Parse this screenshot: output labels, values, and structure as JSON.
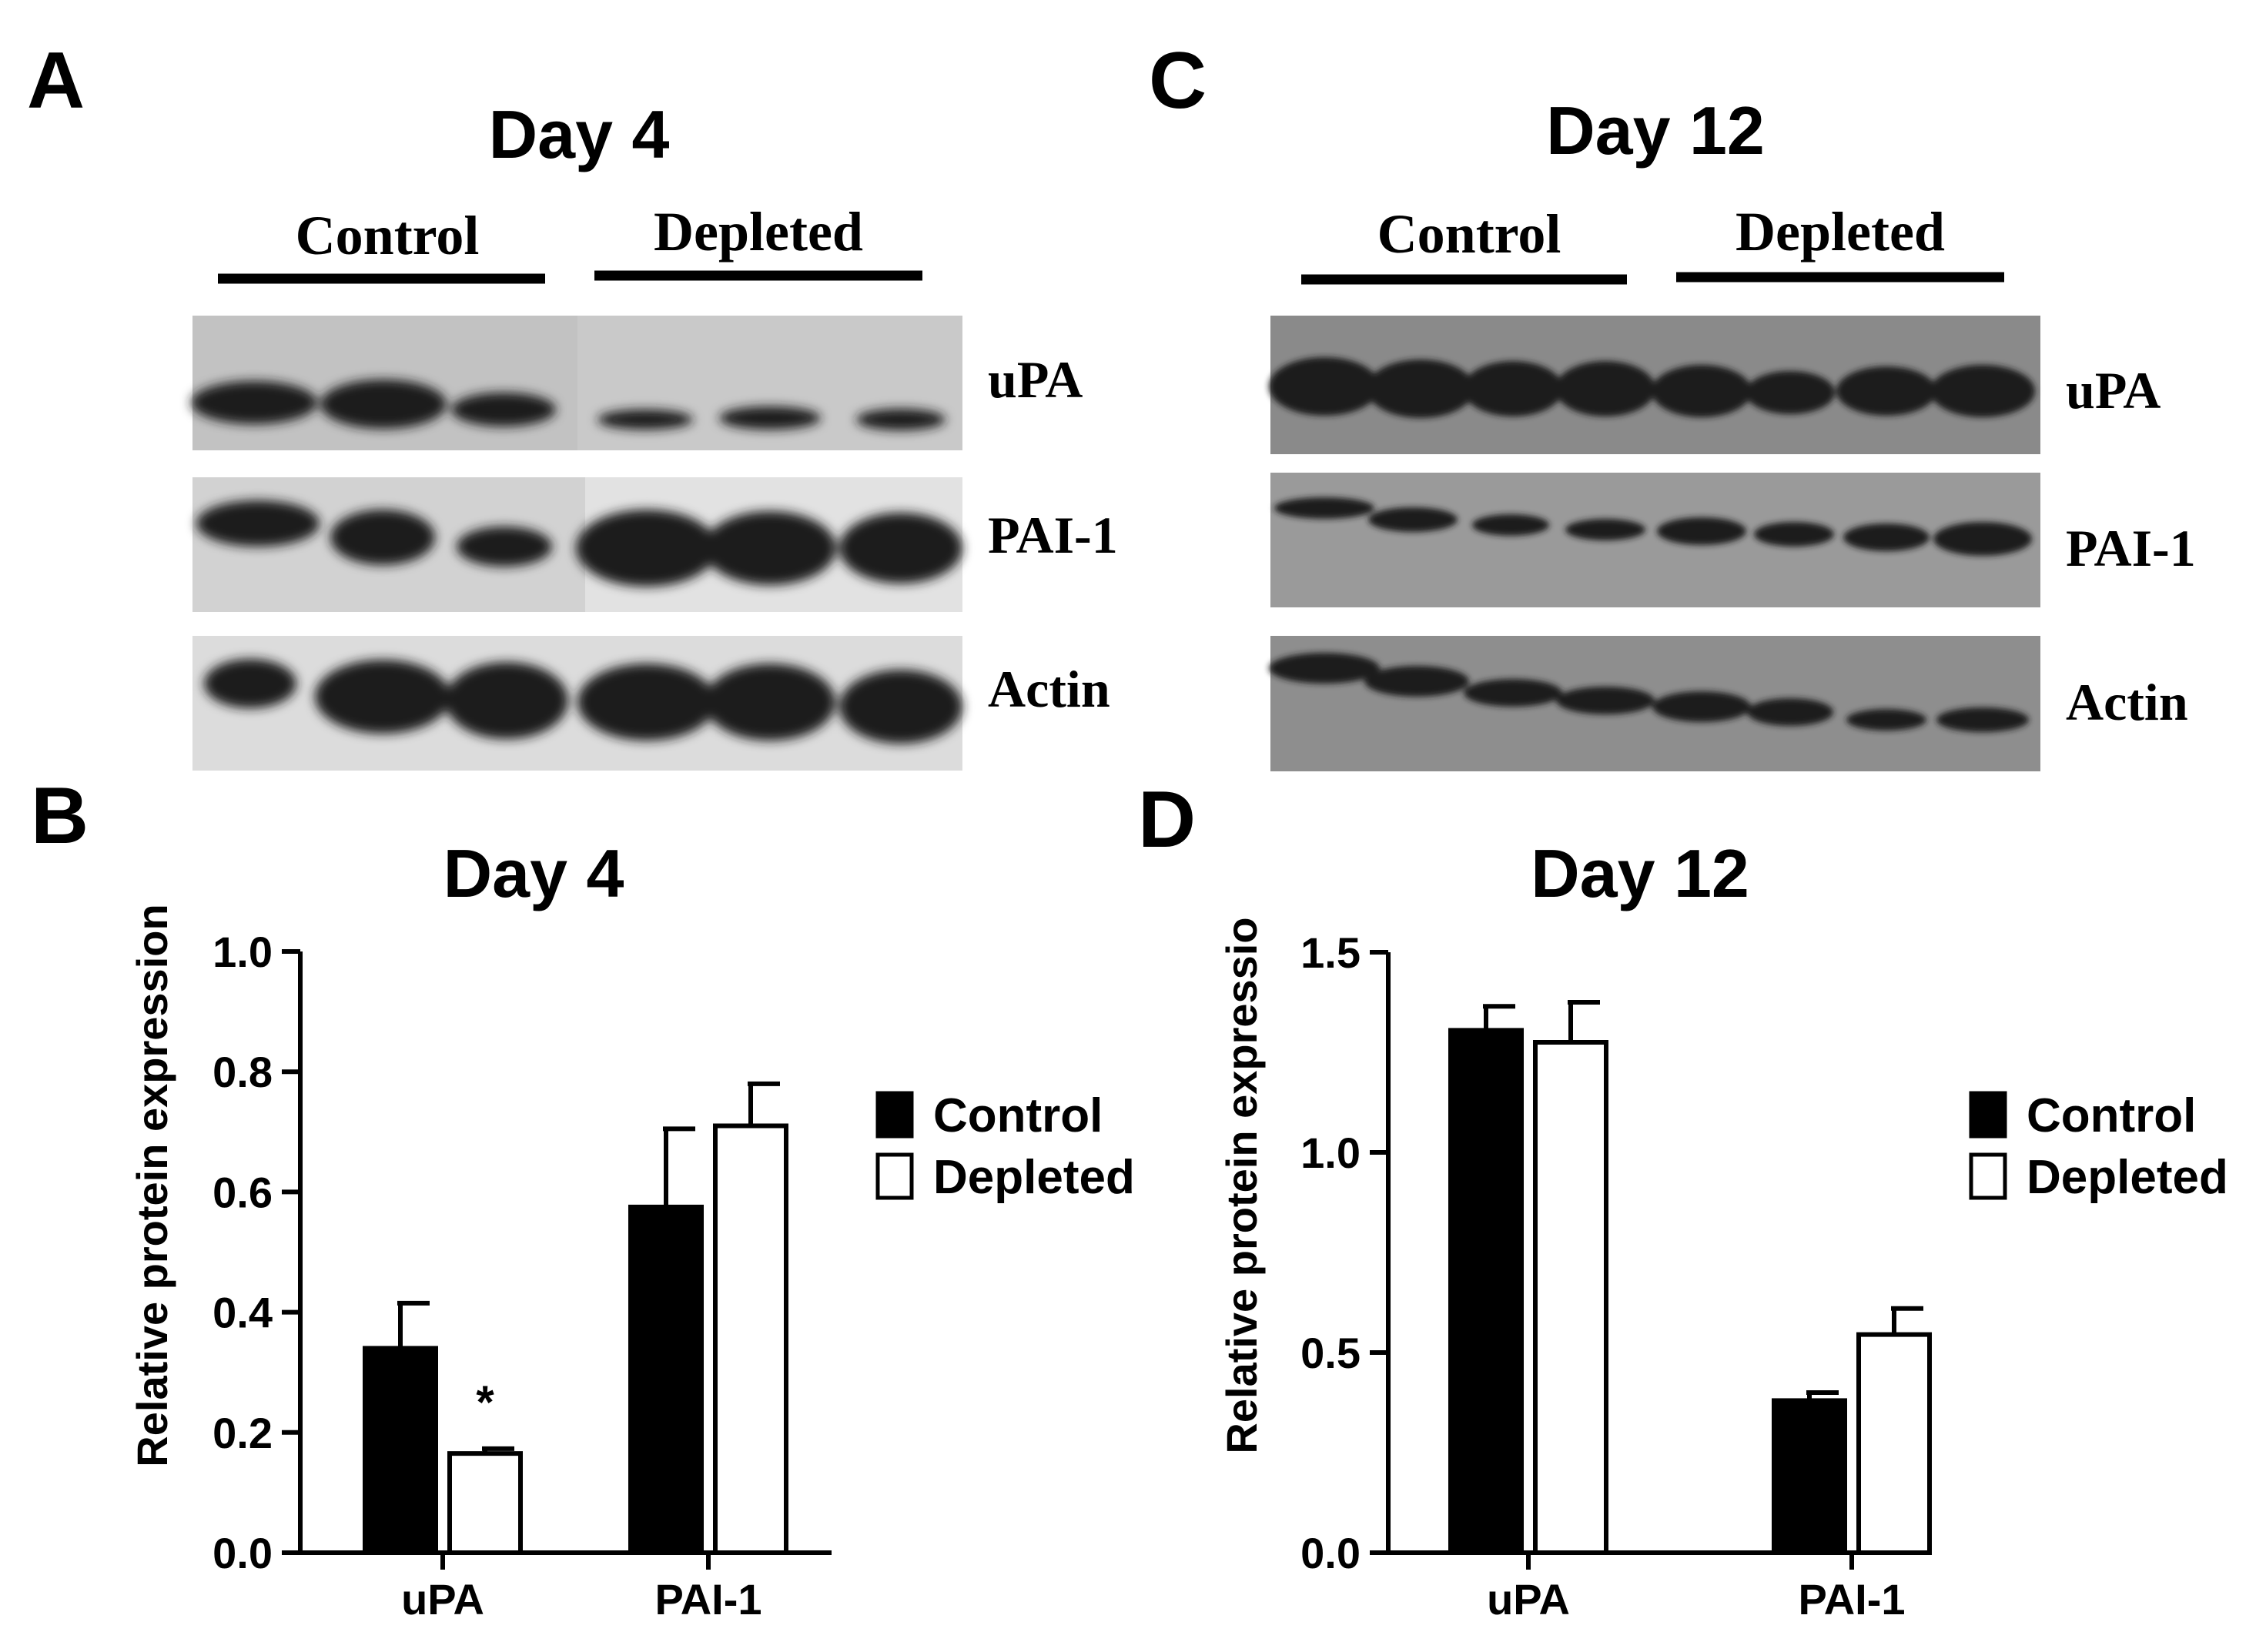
{
  "panels": {
    "A": "A",
    "B": "B",
    "C": "C",
    "D": "D"
  },
  "blots": [
    {
      "title": "Day 4",
      "groups": [
        "Control",
        "Depleted"
      ],
      "bands": [
        "uPA",
        "PAI-1",
        "Actin"
      ],
      "lanes_per_group": 3
    },
    {
      "title": "Day 12",
      "groups": [
        "Control",
        "Depleted"
      ],
      "bands": [
        "uPA",
        "PAI-1",
        "Actin"
      ],
      "lanes_per_group": 4
    }
  ],
  "chart_data": [
    {
      "type": "bar",
      "title": "Day 4",
      "ylabel": "Relative protein expression",
      "categories": [
        "uPA",
        "PAI-1"
      ],
      "ylim": [
        0,
        1.0
      ],
      "yticks": [
        "0.0",
        "0.2",
        "0.4",
        "0.6",
        "0.8",
        "1.0"
      ],
      "yticks_values": [
        0,
        0.2,
        0.4,
        0.6,
        0.8,
        1.0
      ],
      "series": [
        {
          "name": "Control",
          "values": [
            0.34,
            0.575
          ],
          "errors": [
            0.075,
            0.13
          ],
          "fill": "#000000"
        },
        {
          "name": "Depleted",
          "values": [
            0.165,
            0.71
          ],
          "errors": [
            0.008,
            0.07
          ],
          "fill": "#ffffff"
        }
      ],
      "annotations": [
        {
          "category": "uPA",
          "series": "Depleted",
          "text": "*"
        }
      ],
      "legend": "right"
    },
    {
      "type": "bar",
      "title": "Day 12",
      "ylabel": "Relative protein expressio",
      "categories": [
        "uPA",
        "PAI-1"
      ],
      "ylim": [
        0,
        1.5
      ],
      "yticks": [
        "0.0",
        "0.5",
        "1.0",
        "1.5"
      ],
      "yticks_values": [
        0,
        0.5,
        1.0,
        1.5
      ],
      "series": [
        {
          "name": "Control",
          "values": [
            1.305,
            0.38
          ],
          "errors": [
            0.06,
            0.02
          ],
          "fill": "#000000"
        },
        {
          "name": "Depleted",
          "values": [
            1.275,
            0.545
          ],
          "errors": [
            0.1,
            0.065
          ],
          "fill": "#ffffff"
        }
      ],
      "annotations": [],
      "legend": "right"
    }
  ]
}
